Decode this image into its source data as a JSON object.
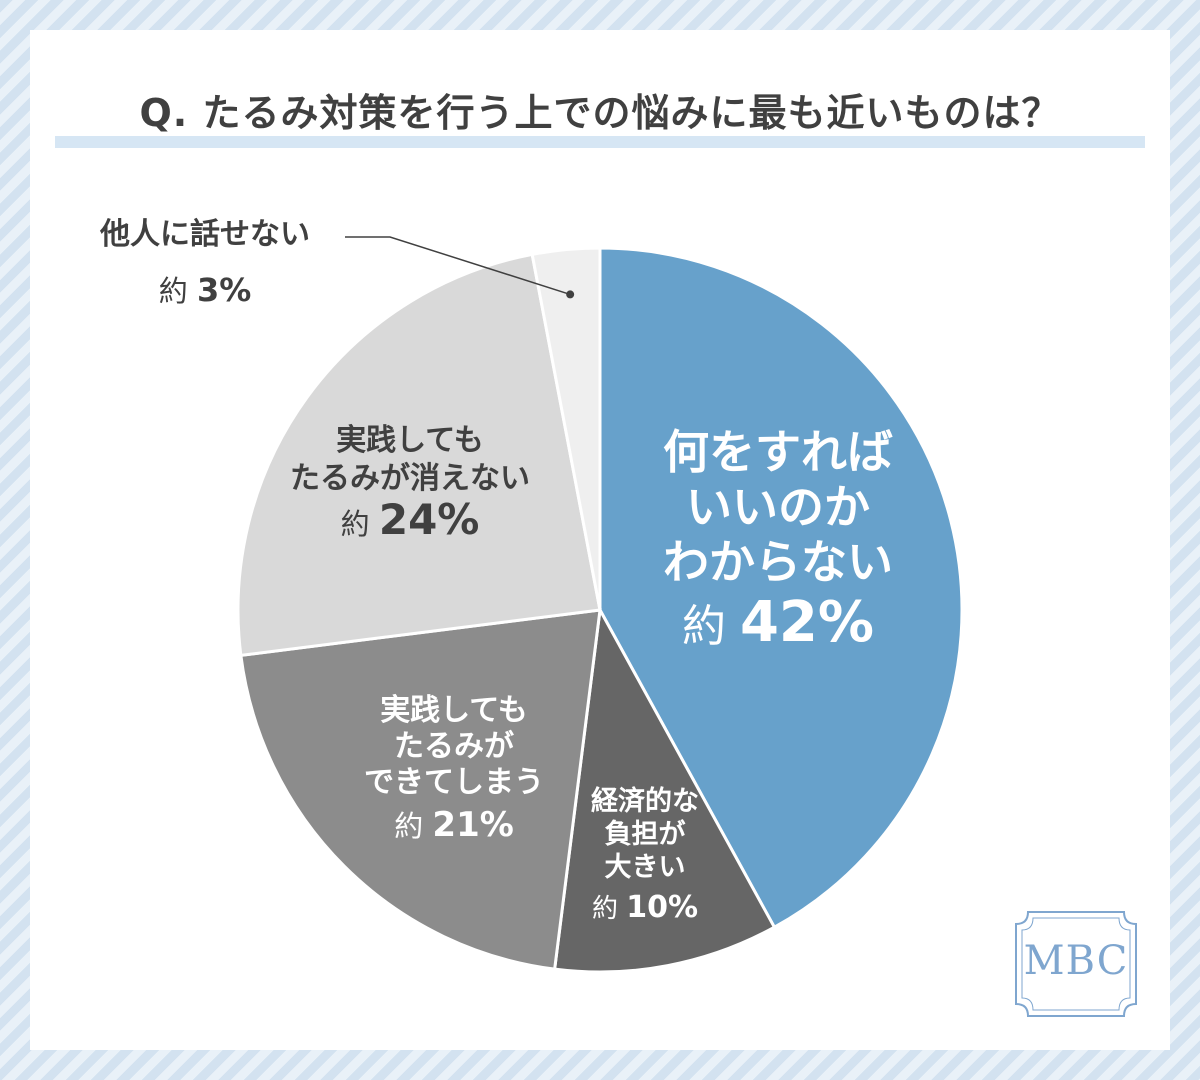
{
  "title": "Q. たるみ対策を行う上での悩みに最も近いものは？",
  "logo": "MBC",
  "chart_data": {
    "type": "pie",
    "slices": [
      {
        "label_lines": [
          "何をすれば",
          "いいのか",
          "わからない"
        ],
        "prefix": "約",
        "value": 42,
        "value_text": "42%",
        "color": "#67a1cb",
        "text_color": "#ffffff"
      },
      {
        "label_lines": [
          "経済的な",
          "負担が",
          "大きい"
        ],
        "prefix": "約",
        "value": 10,
        "value_text": "10%",
        "color": "#666666",
        "text_color": "#ffffff"
      },
      {
        "label_lines": [
          "実践しても",
          "たるみが",
          "できてしまう"
        ],
        "prefix": "約",
        "value": 21,
        "value_text": "21%",
        "color": "#8c8c8c",
        "text_color": "#ffffff"
      },
      {
        "label_lines": [
          "実践しても",
          "たるみが消えない"
        ],
        "prefix": "約",
        "value": 24,
        "value_text": "24%",
        "color": "#d9d9d9",
        "text_color": "#404040"
      },
      {
        "label_lines": [
          "他人に話せない"
        ],
        "prefix": "約",
        "value": 3,
        "value_text": "3%",
        "color": "#efefef",
        "text_color": "#404040"
      }
    ]
  },
  "colors": {
    "background_stripe": "#d3e2f0",
    "title_underline": "#d6e6f4",
    "logo": "#7fa6cf"
  }
}
